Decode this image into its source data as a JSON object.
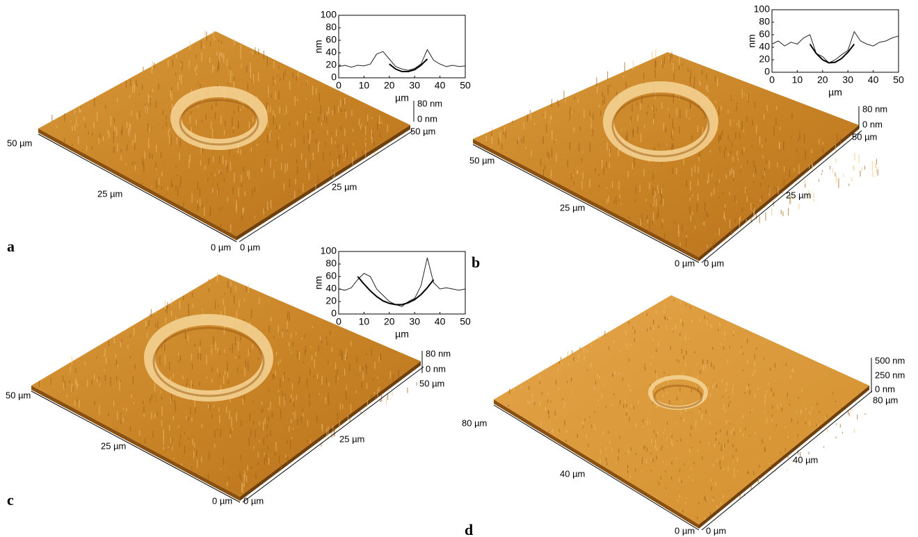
{
  "panels": [
    {
      "letter": "a",
      "axis_labels": [
        "50 µm",
        "25 µm",
        "0 µm",
        "0 µm",
        "25 µm",
        "50 µm"
      ],
      "z_scale": [
        "80 nm",
        "0 nm"
      ]
    },
    {
      "letter": "b",
      "axis_labels": [
        "50 µm",
        "25 µm",
        "0 µm",
        "0 µm",
        "25 µm",
        "50 µm"
      ],
      "z_scale": [
        "80 nm",
        "0 nm"
      ]
    },
    {
      "letter": "c",
      "axis_labels": [
        "50 µm",
        "25 µm",
        "0 µm",
        "0 µm",
        "25 µm",
        "50 µm"
      ],
      "z_scale": [
        "80 nm",
        "0 nm"
      ]
    },
    {
      "letter": "d",
      "axis_labels": [
        "80 µm",
        "40 µm",
        "0 µm",
        "0 µm",
        "40 µm",
        "80 µm"
      ],
      "z_scale": [
        "500 nm",
        "250 nm",
        "0 nm"
      ]
    }
  ],
  "chart_data": [
    {
      "type": "line",
      "xlabel": "µm",
      "ylabel": "nm",
      "x": [
        0,
        2.5,
        5,
        7.5,
        10,
        12.5,
        15,
        17.5,
        20,
        22.5,
        25,
        27.5,
        30,
        32.5,
        35,
        37.5,
        40,
        42.5,
        45,
        47.5,
        50
      ],
      "series": [
        {
          "color": "#222222",
          "values": [
            18,
            20,
            17,
            20,
            19,
            22,
            38,
            42,
            30,
            18,
            14,
            12,
            15,
            22,
            45,
            28,
            22,
            18,
            20,
            18,
            19
          ]
        },
        {
          "color": "#000000",
          "values": [
            null,
            null,
            null,
            null,
            null,
            null,
            null,
            null,
            22,
            14,
            10,
            10,
            13,
            20,
            30,
            null,
            null,
            null,
            null,
            null,
            null
          ]
        }
      ],
      "xlim": [
        0,
        50
      ],
      "ylim": [
        0,
        100
      ],
      "xticks": [
        0,
        10,
        20,
        30,
        40,
        50
      ],
      "yticks": [
        0,
        20,
        40,
        60,
        80,
        100
      ]
    },
    {
      "type": "line",
      "xlabel": "µm",
      "ylabel": "nm",
      "x": [
        0,
        2.5,
        5,
        7.5,
        10,
        12.5,
        15,
        17.5,
        20,
        22.5,
        25,
        27.5,
        30,
        32.5,
        35,
        37.5,
        40,
        42.5,
        45,
        47.5,
        50
      ],
      "series": [
        {
          "color": "#222222",
          "values": [
            45,
            50,
            42,
            48,
            45,
            55,
            60,
            30,
            25,
            15,
            20,
            28,
            35,
            65,
            50,
            45,
            42,
            48,
            50,
            55,
            58
          ]
        },
        {
          "color": "#000000",
          "values": [
            null,
            null,
            null,
            null,
            null,
            null,
            45,
            30,
            20,
            15,
            16,
            22,
            32,
            45,
            null,
            null,
            null,
            null,
            null,
            null,
            null
          ]
        }
      ],
      "xlim": [
        0,
        50
      ],
      "ylim": [
        0,
        100
      ],
      "xticks": [
        0,
        10,
        20,
        30,
        40,
        50
      ],
      "yticks": [
        0,
        20,
        40,
        60,
        80,
        100
      ]
    },
    {
      "type": "line",
      "xlabel": "µm",
      "ylabel": "nm",
      "x": [
        0,
        2.5,
        5,
        7.5,
        10,
        12.5,
        15,
        17.5,
        20,
        22.5,
        25,
        27.5,
        30,
        32.5,
        35,
        37.5,
        40,
        42.5,
        45,
        47.5,
        50
      ],
      "series": [
        {
          "color": "#222222",
          "values": [
            40,
            38,
            42,
            55,
            65,
            60,
            40,
            30,
            20,
            15,
            12,
            20,
            25,
            45,
            90,
            50,
            40,
            42,
            40,
            38,
            40
          ]
        },
        {
          "color": "#000000",
          "values": [
            null,
            null,
            null,
            60,
            48,
            37,
            28,
            21,
            17,
            15,
            15,
            18,
            23,
            31,
            42,
            55,
            null,
            null,
            null,
            null,
            null
          ]
        }
      ],
      "xlim": [
        0,
        50
      ],
      "ylim": [
        0,
        100
      ],
      "xticks": [
        0,
        10,
        20,
        30,
        40,
        50
      ],
      "yticks": [
        0,
        20,
        40,
        60,
        80,
        100
      ]
    }
  ]
}
